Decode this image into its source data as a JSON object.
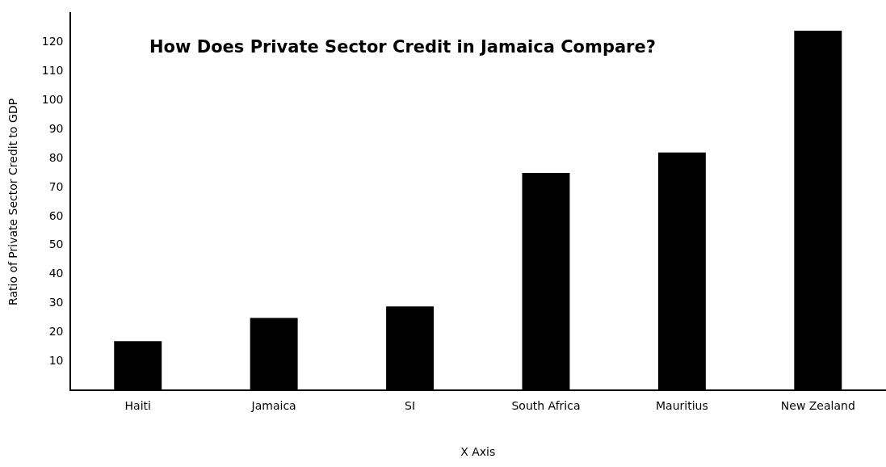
{
  "chart_data": {
    "type": "bar",
    "title": "How Does Private Sector Credit in Jamaica Compare?",
    "xlabel": "X Axis",
    "ylabel": "Ratio of Private Sector Credit to GDP",
    "categories": [
      "Haiti",
      "Jamaica",
      "SI",
      "South Africa",
      "Mauritius",
      "New Zealand"
    ],
    "values": [
      17,
      25,
      29,
      75,
      82,
      124
    ],
    "color": "#000000",
    "ylim": [
      0,
      130
    ],
    "yticks": [
      10,
      20,
      30,
      40,
      50,
      60,
      70,
      80,
      90,
      100,
      110,
      120
    ],
    "grid": false,
    "legend": false
  }
}
